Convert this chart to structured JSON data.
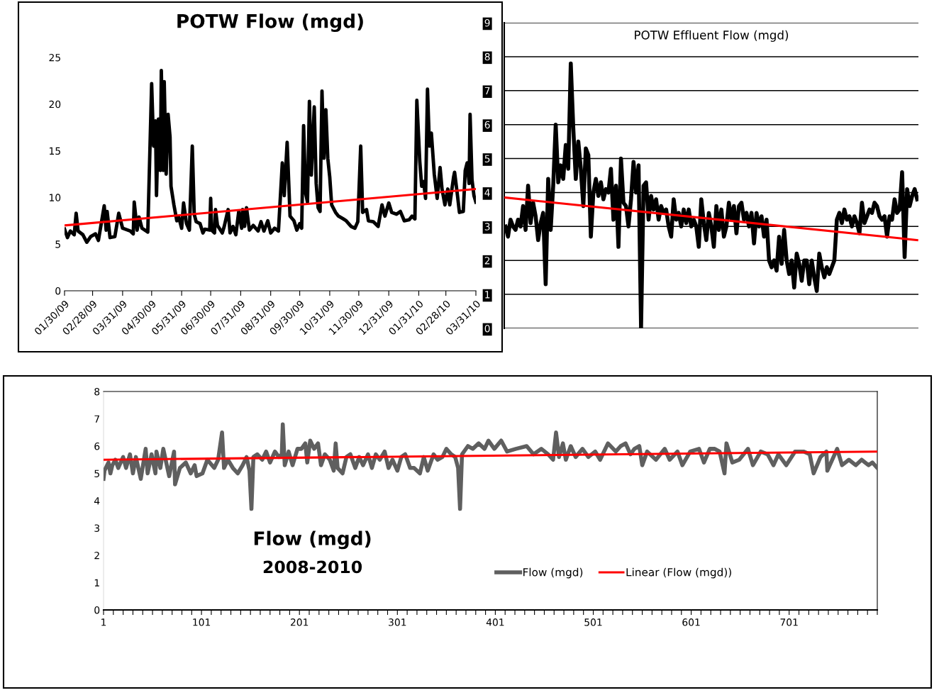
{
  "chart_data": [
    {
      "type": "line",
      "title": "POTW Flow (mgd)",
      "x": [
        "2009-01-30",
        "2009-02-02",
        "2009-02-05",
        "2009-02-09",
        "2009-02-11",
        "2009-02-13",
        "2009-02-18",
        "2009-02-22",
        "2009-02-26",
        "2009-03-03",
        "2009-03-06",
        "2009-03-12",
        "2009-03-14",
        "2009-03-15",
        "2009-03-18",
        "2009-03-23",
        "2009-03-27",
        "2009-03-31",
        "2009-04-08",
        "2009-04-11",
        "2009-04-12",
        "2009-04-15",
        "2009-04-17",
        "2009-04-20",
        "2009-04-26",
        "2009-04-30",
        "2009-05-02",
        "2009-05-04",
        "2009-05-05",
        "2009-05-07",
        "2009-05-09",
        "2009-05-10",
        "2009-05-12",
        "2009-05-13",
        "2009-05-15",
        "2009-05-17",
        "2009-05-19",
        "2009-05-20",
        "2009-05-23",
        "2009-05-26",
        "2009-05-28",
        "2009-05-31",
        "2009-06-02",
        "2009-06-05",
        "2009-06-08",
        "2009-06-11",
        "2009-06-13",
        "2009-06-15",
        "2009-06-19",
        "2009-06-22",
        "2009-06-24",
        "2009-06-29",
        "2009-06-30",
        "2009-07-01",
        "2009-07-04",
        "2009-07-05",
        "2009-07-07",
        "2009-07-12",
        "2009-07-14",
        "2009-07-18",
        "2009-07-20",
        "2009-07-23",
        "2009-07-26",
        "2009-07-29",
        "2009-08-01",
        "2009-08-02",
        "2009-08-04",
        "2009-08-06",
        "2009-08-09",
        "2009-08-13",
        "2009-08-18",
        "2009-08-21",
        "2009-08-24",
        "2009-08-28",
        "2009-08-31",
        "2009-09-04",
        "2009-09-08",
        "2009-09-12",
        "2009-09-14",
        "2009-09-17",
        "2009-09-20",
        "2009-09-24",
        "2009-09-27",
        "2009-09-30",
        "2009-10-02",
        "2009-10-04",
        "2009-10-06",
        "2009-10-08",
        "2009-10-10",
        "2009-10-12",
        "2009-10-15",
        "2009-10-17",
        "2009-10-19",
        "2009-10-21",
        "2009-10-23",
        "2009-10-25",
        "2009-10-27",
        "2009-10-29",
        "2009-10-31",
        "2009-11-02",
        "2009-11-06",
        "2009-11-09",
        "2009-11-14",
        "2009-11-17",
        "2009-11-22",
        "2009-11-26",
        "2009-11-29",
        "2009-12-02",
        "2009-12-04",
        "2009-12-08",
        "2009-12-10",
        "2009-12-15",
        "2009-12-20",
        "2009-12-24",
        "2009-12-27",
        "2009-12-31",
        "2010-01-03",
        "2010-01-08",
        "2010-01-12",
        "2010-01-16",
        "2010-01-21",
        "2010-01-24",
        "2010-01-27",
        "2010-01-29",
        "2010-02-01",
        "2010-02-03",
        "2010-02-05",
        "2010-02-07",
        "2010-02-09",
        "2010-02-11",
        "2010-02-13",
        "2010-02-16",
        "2010-02-19",
        "2010-02-22",
        "2010-02-24",
        "2010-02-27",
        "2010-03-02",
        "2010-03-04",
        "2010-03-08",
        "2010-03-09",
        "2010-03-12",
        "2010-03-14",
        "2010-03-18",
        "2010-03-20",
        "2010-03-22",
        "2010-03-24",
        "2010-03-25",
        "2010-03-27",
        "2010-03-29",
        "2010-03-31"
      ],
      "xlim": [
        "2009-01-30",
        "2010-03-31"
      ],
      "xticks": [
        {
          "value": "2009-01-30",
          "label": "01/30/09"
        },
        {
          "value": "2009-02-28",
          "label": "02/28/09"
        },
        {
          "value": "2009-03-31",
          "label": "03/31/09"
        },
        {
          "value": "2009-04-30",
          "label": "04/30/09"
        },
        {
          "value": "2009-05-31",
          "label": "05/31/09"
        },
        {
          "value": "2009-06-30",
          "label": "06/30/09"
        },
        {
          "value": "2009-07-31",
          "label": "07/31/09"
        },
        {
          "value": "2009-08-31",
          "label": "08/31/09"
        },
        {
          "value": "2009-09-30",
          "label": "09/30/09"
        },
        {
          "value": "2009-10-31",
          "label": "10/31/09"
        },
        {
          "value": "2009-11-30",
          "label": "11/30/09"
        },
        {
          "value": "2009-12-31",
          "label": "12/31/09"
        },
        {
          "value": "2010-01-31",
          "label": "01/31/10"
        },
        {
          "value": "2010-02-28",
          "label": "02/28/10"
        },
        {
          "value": "2010-03-31",
          "label": "03/31/10"
        }
      ],
      "ylim": [
        0,
        25
      ],
      "yticks": [
        0,
        5,
        10,
        15,
        20,
        25
      ],
      "series": [
        {
          "color": "#000000",
          "values": [
            6.6,
            5.7,
            6.4,
            6.0,
            8.3,
            6.4,
            6.0,
            5.2,
            5.8,
            6.1,
            5.4,
            9.1,
            6.5,
            8.5,
            5.7,
            5.8,
            8.3,
            6.7,
            6.4,
            6.1,
            9.5,
            6.5,
            7.9,
            6.7,
            6.3,
            22.2,
            15.5,
            18.2,
            10.2,
            18.4,
            12.9,
            23.6,
            12.9,
            22.4,
            12.5,
            18.9,
            16.5,
            11.2,
            9.2,
            7.5,
            7.9,
            6.7,
            9.4,
            7.2,
            6.5,
            15.5,
            8.2,
            7.4,
            7.2,
            6.2,
            6.6,
            6.5,
            9.9,
            6.5,
            6.2,
            8.7,
            7.0,
            6.2,
            6.9,
            8.7,
            6.2,
            6.9,
            6.0,
            8.5,
            6.7,
            8.7,
            6.9,
            8.9,
            6.5,
            7.0,
            6.4,
            7.4,
            6.4,
            7.5,
            6.2,
            6.7,
            6.4,
            13.7,
            10.2,
            15.9,
            8.0,
            7.5,
            6.5,
            7.2,
            6.7,
            17.7,
            10.5,
            9.5,
            20.3,
            12.4,
            19.7,
            11.5,
            8.9,
            8.5,
            21.4,
            14.2,
            19.4,
            14.2,
            12.2,
            9.2,
            8.4,
            8.0,
            7.7,
            7.5,
            6.9,
            6.7,
            7.4,
            15.5,
            8.4,
            8.7,
            7.5,
            7.4,
            6.9,
            9.2,
            8.0,
            9.4,
            8.4,
            8.2,
            8.5,
            7.5,
            7.6,
            8.0,
            7.7,
            20.4,
            13.9,
            11.2,
            11.7,
            9.9,
            21.6,
            15.5,
            16.9,
            12.5,
            9.9,
            13.2,
            10.9,
            9.2,
            10.9,
            9.2,
            12.2,
            12.7,
            10.2,
            8.4,
            8.5,
            12.9,
            13.7,
            11.5,
            18.9,
            11.9,
            10.2,
            9.5
          ]
        },
        {
          "type": "line",
          "color": "#ff0000",
          "x": [
            "2009-01-30",
            "2010-03-31"
          ],
          "values": [
            7.0,
            10.9
          ]
        }
      ]
    },
    {
      "type": "line",
      "title": "POTW Effluent Flow (mgd)",
      "categories": [
        null,
        null,
        null,
        null,
        null,
        null,
        null,
        null,
        null,
        null,
        null,
        null,
        null,
        null,
        null,
        null,
        null,
        null,
        null,
        null,
        null,
        null,
        null,
        null,
        null,
        null,
        null,
        null,
        null,
        null,
        null,
        null,
        null,
        null,
        null,
        null,
        null,
        null,
        null,
        null,
        null,
        null,
        null,
        null,
        null,
        null,
        null,
        null,
        null,
        null,
        null,
        null,
        null,
        null,
        null,
        null,
        null,
        null,
        null,
        null,
        null,
        null,
        null,
        null,
        null,
        null,
        null,
        null,
        null,
        null,
        null,
        null,
        null,
        null,
        null,
        null,
        null,
        null,
        null,
        null,
        null,
        null,
        null,
        null,
        null,
        null,
        null,
        null,
        null,
        null,
        null,
        null,
        null,
        null,
        null,
        null,
        null,
        null,
        null,
        null,
        null,
        null,
        null,
        null,
        null,
        null,
        null,
        null,
        null,
        null,
        null,
        null,
        null,
        null,
        null,
        null,
        null,
        null,
        null,
        null,
        null,
        null,
        null,
        null,
        null,
        null,
        null,
        null,
        null,
        null,
        null,
        null,
        null,
        null,
        null,
        null,
        null,
        null,
        null,
        null,
        null,
        null,
        null,
        null,
        null,
        null,
        null,
        null,
        null,
        null,
        null,
        null,
        null,
        null,
        null,
        null,
        null,
        null,
        null,
        null,
        null,
        null,
        null,
        null,
        null
      ],
      "ylim": [
        0,
        9
      ],
      "yticks": [
        0,
        1,
        2,
        3,
        4,
        5,
        6,
        7,
        8,
        9
      ],
      "grid": "y",
      "tick_labels": "y",
      "series": [
        {
          "color": "#000000",
          "values": [
            3.0,
            2.7,
            3.2,
            3.0,
            2.9,
            3.2,
            3.0,
            3.6,
            2.9,
            4.2,
            3.1,
            3.7,
            3.3,
            2.6,
            3.1,
            3.4,
            1.3,
            4.4,
            2.9,
            4.2,
            6.0,
            4.3,
            4.8,
            4.4,
            5.4,
            4.7,
            7.8,
            5.9,
            4.4,
            5.5,
            4.7,
            3.6,
            5.3,
            5.1,
            2.7,
            4.0,
            4.4,
            3.9,
            4.3,
            3.8,
            4.1,
            4.0,
            4.7,
            3.2,
            4.2,
            2.4,
            5.0,
            3.7,
            3.6,
            3.0,
            3.8,
            4.9,
            4.0,
            4.8,
            0.0,
            4.2,
            4.3,
            3.2,
            3.9,
            3.5,
            3.8,
            3.2,
            3.6,
            3.4,
            3.5,
            3.0,
            2.7,
            3.8,
            3.2,
            3.4,
            3.0,
            3.5,
            3.1,
            3.5,
            3.0,
            3.2,
            3.0,
            2.4,
            3.8,
            3.1,
            2.6,
            3.4,
            3.0,
            2.4,
            3.6,
            2.9,
            3.5,
            2.7,
            3.0,
            3.7,
            3.2,
            3.6,
            2.8,
            3.6,
            3.7,
            3.2,
            3.4,
            3.0,
            3.4,
            2.5,
            3.4,
            3.0,
            3.3,
            2.7,
            3.2,
            2.0,
            1.8,
            2.0,
            1.7,
            2.7,
            1.9,
            2.9,
            2.0,
            1.6,
            2.0,
            1.2,
            2.2,
            1.9,
            1.4,
            2.0,
            2.0,
            1.3,
            2.0,
            1.5,
            1.1,
            2.2,
            1.8,
            1.5,
            1.8,
            1.6,
            1.8,
            2.0,
            3.2,
            3.4,
            3.1,
            3.5,
            3.2,
            3.3,
            3.0,
            3.3,
            3.1,
            2.8,
            3.7,
            3.1,
            3.3,
            3.5,
            3.4,
            3.7,
            3.6,
            3.3,
            3.2,
            3.3,
            2.7,
            3.3,
            3.2,
            3.8,
            3.4,
            3.5,
            4.6,
            2.1,
            4.1,
            3.6,
            3.9,
            4.1,
            3.8
          ]
        },
        {
          "type": "line",
          "color": "#ff0000",
          "values": [
            3.85,
            null,
            null,
            null,
            null,
            null,
            null,
            null,
            null,
            null,
            null,
            null,
            null,
            null,
            null,
            null,
            null,
            null,
            null,
            null,
            null,
            null,
            null,
            null,
            null,
            null,
            null,
            null,
            null,
            null,
            null,
            null,
            null,
            null,
            null,
            null,
            null,
            null,
            null,
            null,
            null,
            null,
            null,
            null,
            null,
            null,
            null,
            null,
            null,
            null,
            null,
            null,
            null,
            null,
            null,
            null,
            null,
            null,
            null,
            null,
            null,
            null,
            null,
            null,
            null,
            null,
            null,
            null,
            null,
            null,
            null,
            null,
            null,
            null,
            null,
            null,
            null,
            null,
            null,
            null,
            null,
            null,
            null,
            null,
            null,
            null,
            null,
            null,
            null,
            null,
            null,
            null,
            null,
            null,
            null,
            null,
            null,
            null,
            null,
            null,
            null,
            null,
            null,
            null,
            null,
            null,
            null,
            null,
            null,
            null,
            null,
            null,
            null,
            null,
            null,
            null,
            null,
            null,
            null,
            null,
            null,
            null,
            null,
            null,
            null,
            null,
            null,
            null,
            null,
            null,
            null,
            null,
            null,
            null,
            null,
            null,
            null,
            null,
            null,
            null,
            null,
            null,
            null,
            null,
            null,
            null,
            null,
            null,
            null,
            null,
            null,
            null,
            null,
            null,
            null,
            null,
            null,
            null,
            null,
            null,
            null,
            null,
            null,
            null,
            2.6
          ]
        }
      ]
    },
    {
      "type": "line",
      "title": "Flow (mgd)",
      "subtitle": "2008-2010",
      "xlim": [
        1,
        791
      ],
      "xticks": [
        1,
        {
          "value": 11,
          "label": null
        },
        {
          "value": 21,
          "label": null
        },
        {
          "value": 31,
          "label": null
        },
        {
          "value": 41,
          "label": null
        },
        {
          "value": 51,
          "label": null
        },
        {
          "value": 61,
          "label": null
        },
        {
          "value": 71,
          "label": null
        },
        {
          "value": 81,
          "label": null
        },
        {
          "value": 91,
          "label": null
        },
        101,
        {
          "value": 111,
          "label": null
        },
        {
          "value": 121,
          "label": null
        },
        {
          "value": 131,
          "label": null
        },
        {
          "value": 141,
          "label": null
        },
        {
          "value": 151,
          "label": null
        },
        {
          "value": 161,
          "label": null
        },
        {
          "value": 171,
          "label": null
        },
        {
          "value": 181,
          "label": null
        },
        {
          "value": 191,
          "label": null
        },
        201,
        {
          "value": 211,
          "label": null
        },
        {
          "value": 221,
          "label": null
        },
        {
          "value": 231,
          "label": null
        },
        {
          "value": 241,
          "label": null
        },
        {
          "value": 251,
          "label": null
        },
        {
          "value": 261,
          "label": null
        },
        {
          "value": 271,
          "label": null
        },
        {
          "value": 281,
          "label": null
        },
        {
          "value": 291,
          "label": null
        },
        301,
        {
          "value": 311,
          "label": null
        },
        {
          "value": 321,
          "label": null
        },
        {
          "value": 331,
          "label": null
        },
        {
          "value": 341,
          "label": null
        },
        {
          "value": 351,
          "label": null
        },
        {
          "value": 361,
          "label": null
        },
        {
          "value": 371,
          "label": null
        },
        {
          "value": 381,
          "label": null
        },
        {
          "value": 391,
          "label": null
        },
        401,
        {
          "value": 411,
          "label": null
        },
        {
          "value": 421,
          "label": null
        },
        {
          "value": 431,
          "label": null
        },
        {
          "value": 441,
          "label": null
        },
        {
          "value": 451,
          "label": null
        },
        {
          "value": 461,
          "label": null
        },
        {
          "value": 471,
          "label": null
        },
        {
          "value": 481,
          "label": null
        },
        {
          "value": 491,
          "label": null
        },
        501,
        {
          "value": 511,
          "label": null
        },
        {
          "value": 521,
          "label": null
        },
        {
          "value": 531,
          "label": null
        },
        {
          "value": 541,
          "label": null
        },
        {
          "value": 551,
          "label": null
        },
        {
          "value": 561,
          "label": null
        },
        {
          "value": 571,
          "label": null
        },
        {
          "value": 581,
          "label": null
        },
        {
          "value": 591,
          "label": null
        },
        601,
        {
          "value": 611,
          "label": null
        },
        {
          "value": 621,
          "label": null
        },
        {
          "value": 631,
          "label": null
        },
        {
          "value": 641,
          "label": null
        },
        {
          "value": 651,
          "label": null
        },
        {
          "value": 661,
          "label": null
        },
        {
          "value": 671,
          "label": null
        },
        {
          "value": 681,
          "label": null
        },
        {
          "value": 691,
          "label": null
        },
        701,
        {
          "value": 711,
          "label": null
        },
        {
          "value": 721,
          "label": null
        },
        {
          "value": 731,
          "label": null
        },
        {
          "value": 741,
          "label": null
        },
        {
          "value": 751,
          "label": null
        },
        {
          "value": 761,
          "label": null
        },
        {
          "value": 771,
          "label": null
        },
        {
          "value": 781,
          "label": null
        },
        {
          "value": 791,
          "label": null
        }
      ],
      "ylim": [
        0,
        8
      ],
      "yticks": [
        0,
        1,
        2,
        3,
        4,
        5,
        6,
        7,
        8
      ],
      "legend": "bottom",
      "series": [
        {
          "name": "Flow (mgd)",
          "color": "#5f5f5f",
          "x": [
            1,
            2,
            6,
            8,
            10,
            13,
            16,
            21,
            24,
            28,
            31,
            34,
            39,
            44,
            46,
            50,
            54,
            55,
            59,
            62,
            68,
            73,
            74,
            79,
            85,
            90,
            94,
            96,
            102,
            107,
            114,
            118,
            122,
            124,
            128,
            133,
            138,
            143,
            147,
            150,
            152,
            154,
            158,
            163,
            167,
            171,
            176,
            180,
            183,
            184,
            186,
            190,
            194,
            199,
            203,
            207,
            209,
            212,
            216,
            220,
            223,
            227,
            232,
            236,
            238,
            240,
            245,
            249,
            253,
            258,
            262,
            266,
            271,
            275,
            279,
            283,
            288,
            292,
            296,
            301,
            305,
            309,
            314,
            318,
            324,
            328,
            332,
            338,
            342,
            347,
            351,
            356,
            360,
            363,
            365,
            367,
            373,
            378,
            384,
            390,
            394,
            400,
            407,
            413,
            422,
            433,
            440,
            448,
            455,
            460,
            463,
            466,
            470,
            473,
            478,
            483,
            490,
            496,
            503,
            508,
            516,
            524,
            529,
            534,
            539,
            543,
            548,
            551,
            556,
            565,
            574,
            579,
            587,
            592,
            600,
            609,
            614,
            620,
            625,
            630,
            635,
            637,
            643,
            650,
            659,
            664,
            672,
            679,
            685,
            690,
            698,
            707,
            716,
            722,
            726,
            733,
            739,
            740,
            750,
            755,
            762,
            769,
            775,
            782,
            786,
            791
          ],
          "values": [
            4.8,
            5.1,
            5.4,
            5.0,
            5.3,
            5.5,
            5.2,
            5.6,
            5.2,
            5.7,
            5.0,
            5.6,
            4.8,
            5.9,
            5.0,
            5.7,
            5.0,
            5.8,
            5.2,
            5.9,
            4.9,
            5.8,
            4.6,
            5.2,
            5.4,
            5.0,
            5.3,
            4.9,
            5.0,
            5.5,
            5.2,
            5.5,
            6.5,
            5.2,
            5.5,
            5.2,
            5.0,
            5.3,
            5.6,
            5.1,
            3.7,
            5.6,
            5.7,
            5.5,
            5.8,
            5.4,
            5.8,
            5.6,
            5.7,
            6.8,
            5.3,
            5.8,
            5.3,
            5.9,
            5.9,
            6.1,
            5.4,
            6.2,
            5.9,
            6.1,
            5.3,
            5.7,
            5.5,
            5.1,
            6.1,
            5.2,
            5.0,
            5.6,
            5.7,
            5.2,
            5.6,
            5.3,
            5.7,
            5.2,
            5.7,
            5.5,
            5.8,
            5.2,
            5.5,
            5.1,
            5.6,
            5.7,
            5.2,
            5.2,
            5.0,
            5.6,
            5.1,
            5.7,
            5.5,
            5.6,
            5.9,
            5.7,
            5.6,
            5.2,
            3.7,
            5.7,
            6.0,
            5.9,
            6.1,
            5.9,
            6.2,
            5.9,
            6.2,
            5.8,
            5.9,
            6.0,
            5.7,
            5.9,
            5.7,
            5.5,
            6.5,
            5.6,
            6.1,
            5.5,
            6.0,
            5.6,
            5.9,
            5.6,
            5.8,
            5.5,
            6.1,
            5.8,
            6.0,
            6.1,
            5.7,
            5.9,
            6.0,
            5.3,
            5.8,
            5.5,
            5.9,
            5.5,
            5.8,
            5.3,
            5.8,
            5.9,
            5.4,
            5.9,
            5.9,
            5.8,
            5.0,
            6.1,
            5.4,
            5.5,
            5.9,
            5.3,
            5.8,
            5.7,
            5.3,
            5.7,
            5.3,
            5.8,
            5.8,
            5.7,
            5.0,
            5.6,
            5.8,
            5.1,
            5.9,
            5.3,
            5.5,
            5.3,
            5.5,
            5.3,
            5.4,
            5.2
          ]
        },
        {
          "name": "Linear (Flow (mgd))",
          "type": "line",
          "color": "#ff0000",
          "x": [
            1,
            791
          ],
          "values": [
            5.5,
            5.8
          ]
        }
      ]
    }
  ]
}
